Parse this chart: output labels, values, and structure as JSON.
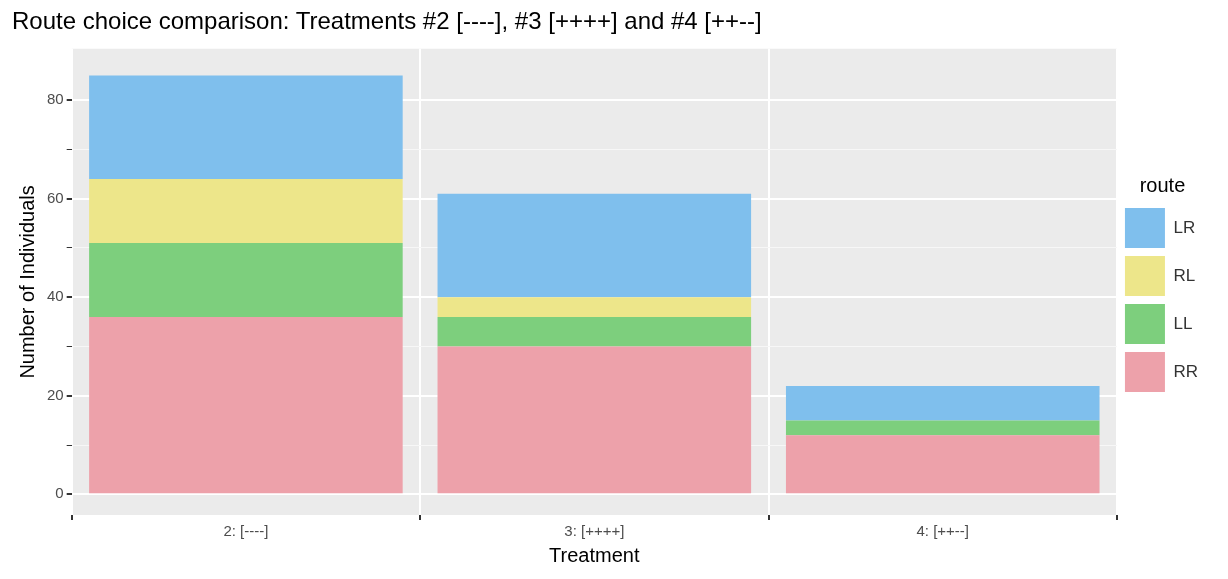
{
  "chart_data": {
    "type": "bar",
    "title": "Route choice comparison: Treatments #2 [----], #3 [++++] and #4 [++--]",
    "xlabel": "Treatment",
    "ylabel": "Number of Individuals",
    "legend_title": "route",
    "categories": [
      "2: [----]",
      "3: [++++]",
      "4: [++--]"
    ],
    "stacked": true,
    "series": [
      {
        "name": "RR",
        "color": "#eda1aa",
        "values": [
          36,
          30,
          12
        ]
      },
      {
        "name": "LL",
        "color": "#7dcf7d",
        "values": [
          15,
          6,
          3
        ]
      },
      {
        "name": "RL",
        "color": "#ede68a",
        "values": [
          13,
          4,
          0
        ]
      },
      {
        "name": "LR",
        "color": "#7fbfed",
        "values": [
          21,
          21,
          7
        ]
      }
    ],
    "ylim": [
      -4.2,
      90.4
    ],
    "yticks": [
      0,
      {
        "value": 10,
        "label": null
      },
      20,
      {
        "value": 30,
        "label": null
      },
      40,
      {
        "value": 50,
        "label": null
      },
      60,
      {
        "value": 70,
        "label": null
      },
      80
    ],
    "grid": true,
    "legend": "right"
  }
}
